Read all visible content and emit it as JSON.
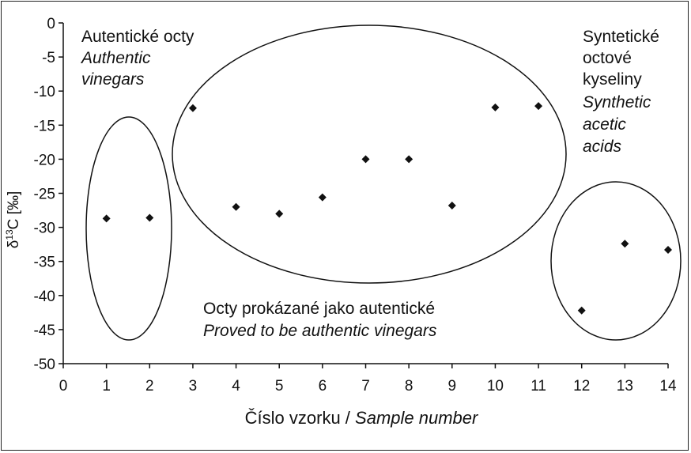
{
  "chart_data": {
    "type": "scatter",
    "x": [
      1,
      2,
      3,
      4,
      5,
      6,
      7,
      8,
      9,
      10,
      11,
      12,
      13,
      14
    ],
    "values": [
      -28.7,
      -28.6,
      -12.5,
      -27.0,
      -28.0,
      -25.6,
      -20.0,
      -20.0,
      -26.8,
      -12.4,
      -12.2,
      -42.2,
      -32.4,
      -33.3
    ],
    "xlim": [
      0,
      14
    ],
    "ylim": [
      -50,
      0
    ],
    "x_ticks": [
      "0",
      "1",
      "2",
      "3",
      "4",
      "5",
      "6",
      "7",
      "8",
      "9",
      "10",
      "11",
      "12",
      "13",
      "14"
    ],
    "y_ticks": [
      "0",
      "-5",
      "-10",
      "-15",
      "-20",
      "-25",
      "-30",
      "-35",
      "-40",
      "-45",
      "-50"
    ],
    "xlabel": {
      "main": "Číslo vzorku / ",
      "italic": "Sample number"
    },
    "ylabel": {
      "delta": "δ",
      "sup": "13",
      "rest": "C [‰]"
    },
    "grid": false,
    "marker_color": "#111111",
    "annotations": {
      "authentic": {
        "line1": "Autentické octy",
        "line2": "Authentic",
        "line3": "vinegars"
      },
      "synthetic": {
        "line1": "Syntetické",
        "line2": "octové",
        "line3": "kyseliny",
        "line4": "Synthetic",
        "line5": "acetic",
        "line6": "acids"
      },
      "proved": {
        "line1": "Octy prokázané jako autentické",
        "line2": "Proved to be authentic vinegars"
      }
    }
  }
}
